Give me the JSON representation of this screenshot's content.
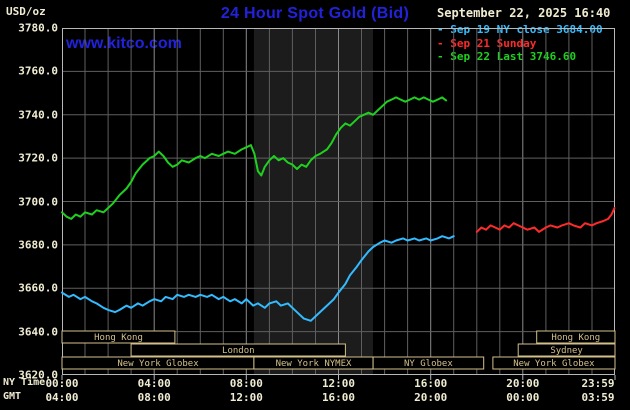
{
  "header": {
    "unit_label": "USD/oz",
    "title": "24 Hour Spot Gold (Bid)",
    "timestamp": "September 22, 2025 16:40",
    "watermark": "www.kitco.com"
  },
  "legend": {
    "entries": [
      {
        "bullet": "-",
        "label": "Sep 19 NY close 3684.00",
        "color": "#33bbff"
      },
      {
        "bullet": "-",
        "label": "Sep 21 Sunday",
        "color": "#ff2a2a"
      },
      {
        "bullet": "-",
        "label": "Sep 22 Last 3746.60",
        "color": "#1fd11f"
      }
    ]
  },
  "colors": {
    "background": "#000000",
    "title_blue": "#2222dd",
    "cream_text": "#f0ecd2",
    "grid_minor": "#5f5f5f",
    "grid_major": "#8a8a8a",
    "plot_border": "#b8b8b8",
    "session_tan": "#d2c08a",
    "nymex_band": "#1c1c1c",
    "cyan": "#33bbff",
    "red": "#ff2a2a",
    "green": "#1fd11f"
  },
  "chart_data": {
    "type": "line",
    "title": "24 Hour Spot Gold (Bid)",
    "ylabel": "USD/oz",
    "ylim": [
      3620,
      3780
    ],
    "y_step": 20,
    "y_tick_labels": [
      "3780.0",
      "3760.0",
      "3740.0",
      "3720.0",
      "3700.0",
      "3680.0",
      "3660.0",
      "3640.0",
      "3620.0"
    ],
    "xlim_hours": [
      0,
      24
    ],
    "x_tick_hours": [
      0,
      4,
      8,
      12,
      16,
      20,
      24
    ],
    "x_rows": [
      {
        "name": "NY Time",
        "labels": [
          "00:00",
          "04:00",
          "08:00",
          "12:00",
          "16:00",
          "20:00",
          "23:59"
        ]
      },
      {
        "name": "GMT",
        "labels": [
          "04:00",
          "08:00",
          "12:00",
          "16:00",
          "20:00",
          "00:00",
          "03:59"
        ]
      }
    ],
    "grid": true,
    "legend_position": "top-right",
    "nymex_highlight_hours": [
      8.33,
      13.5
    ],
    "series": [
      {
        "name": "Sep 19 NY close",
        "close_value": 3684.0,
        "color": "#33bbff",
        "points": [
          [
            0,
            3658
          ],
          [
            0.3,
            3656
          ],
          [
            0.5,
            3657
          ],
          [
            0.8,
            3655
          ],
          [
            1,
            3656
          ],
          [
            1.3,
            3654
          ],
          [
            1.5,
            3653
          ],
          [
            1.8,
            3651
          ],
          [
            2,
            3650
          ],
          [
            2.3,
            3649
          ],
          [
            2.5,
            3650
          ],
          [
            2.8,
            3652
          ],
          [
            3,
            3651
          ],
          [
            3.3,
            3653
          ],
          [
            3.5,
            3652
          ],
          [
            3.8,
            3654
          ],
          [
            4,
            3655
          ],
          [
            4.3,
            3654
          ],
          [
            4.5,
            3656
          ],
          [
            4.8,
            3655
          ],
          [
            5,
            3657
          ],
          [
            5.3,
            3656
          ],
          [
            5.5,
            3657
          ],
          [
            5.8,
            3656
          ],
          [
            6,
            3657
          ],
          [
            6.3,
            3656
          ],
          [
            6.5,
            3657
          ],
          [
            6.8,
            3655
          ],
          [
            7,
            3656
          ],
          [
            7.3,
            3654
          ],
          [
            7.5,
            3655
          ],
          [
            7.8,
            3653
          ],
          [
            8,
            3655
          ],
          [
            8.3,
            3652
          ],
          [
            8.5,
            3653
          ],
          [
            8.8,
            3651
          ],
          [
            9,
            3653
          ],
          [
            9.3,
            3654
          ],
          [
            9.5,
            3652
          ],
          [
            9.8,
            3653
          ],
          [
            10,
            3651
          ],
          [
            10.3,
            3648
          ],
          [
            10.5,
            3646
          ],
          [
            10.8,
            3645
          ],
          [
            11,
            3647
          ],
          [
            11.3,
            3650
          ],
          [
            11.5,
            3652
          ],
          [
            11.8,
            3655
          ],
          [
            12,
            3658
          ],
          [
            12.3,
            3662
          ],
          [
            12.5,
            3666
          ],
          [
            12.8,
            3670
          ],
          [
            13,
            3673
          ],
          [
            13.3,
            3677
          ],
          [
            13.5,
            3679
          ],
          [
            13.8,
            3681
          ],
          [
            14,
            3682
          ],
          [
            14.3,
            3681
          ],
          [
            14.5,
            3682
          ],
          [
            14.8,
            3683
          ],
          [
            15,
            3682
          ],
          [
            15.3,
            3683
          ],
          [
            15.5,
            3682
          ],
          [
            15.8,
            3683
          ],
          [
            16,
            3682
          ],
          [
            16.3,
            3683
          ],
          [
            16.5,
            3684
          ],
          [
            16.8,
            3683
          ],
          [
            17,
            3684
          ]
        ]
      },
      {
        "name": "Sep 21 Sunday",
        "color": "#ff2a2a",
        "points": [
          [
            18,
            3686
          ],
          [
            18.2,
            3688
          ],
          [
            18.4,
            3687
          ],
          [
            18.6,
            3689
          ],
          [
            18.8,
            3688
          ],
          [
            19,
            3687
          ],
          [
            19.2,
            3689
          ],
          [
            19.4,
            3688
          ],
          [
            19.6,
            3690
          ],
          [
            19.8,
            3689
          ],
          [
            20,
            3688
          ],
          [
            20.2,
            3687
          ],
          [
            20.5,
            3688
          ],
          [
            20.7,
            3686
          ],
          [
            21,
            3688
          ],
          [
            21.2,
            3689
          ],
          [
            21.5,
            3688
          ],
          [
            21.7,
            3689
          ],
          [
            22,
            3690
          ],
          [
            22.2,
            3689
          ],
          [
            22.5,
            3688
          ],
          [
            22.7,
            3690
          ],
          [
            23,
            3689
          ],
          [
            23.2,
            3690
          ],
          [
            23.5,
            3691
          ],
          [
            23.7,
            3692
          ],
          [
            23.85,
            3694
          ],
          [
            23.98,
            3697
          ]
        ]
      },
      {
        "name": "Sep 22 Last",
        "last_value": 3746.6,
        "color": "#1fd11f",
        "points": [
          [
            0,
            3695
          ],
          [
            0.2,
            3693
          ],
          [
            0.4,
            3692
          ],
          [
            0.6,
            3694
          ],
          [
            0.8,
            3693
          ],
          [
            1,
            3695
          ],
          [
            1.3,
            3694
          ],
          [
            1.5,
            3696
          ],
          [
            1.8,
            3695
          ],
          [
            2,
            3697
          ],
          [
            2.2,
            3699
          ],
          [
            2.5,
            3703
          ],
          [
            2.8,
            3706
          ],
          [
            3,
            3709
          ],
          [
            3.2,
            3713
          ],
          [
            3.5,
            3717
          ],
          [
            3.8,
            3720
          ],
          [
            4,
            3721
          ],
          [
            4.2,
            3723
          ],
          [
            4.4,
            3721
          ],
          [
            4.6,
            3718
          ],
          [
            4.8,
            3716
          ],
          [
            5,
            3717
          ],
          [
            5.2,
            3719
          ],
          [
            5.5,
            3718
          ],
          [
            5.8,
            3720
          ],
          [
            6,
            3721
          ],
          [
            6.2,
            3720
          ],
          [
            6.5,
            3722
          ],
          [
            6.8,
            3721
          ],
          [
            7,
            3722
          ],
          [
            7.2,
            3723
          ],
          [
            7.5,
            3722
          ],
          [
            7.8,
            3724
          ],
          [
            8,
            3725
          ],
          [
            8.2,
            3726
          ],
          [
            8.35,
            3722
          ],
          [
            8.5,
            3714
          ],
          [
            8.65,
            3712
          ],
          [
            8.8,
            3716
          ],
          [
            9,
            3719
          ],
          [
            9.2,
            3721
          ],
          [
            9.4,
            3719
          ],
          [
            9.6,
            3720
          ],
          [
            9.8,
            3718
          ],
          [
            10,
            3717
          ],
          [
            10.2,
            3715
          ],
          [
            10.4,
            3717
          ],
          [
            10.6,
            3716
          ],
          [
            10.8,
            3719
          ],
          [
            11,
            3721
          ],
          [
            11.2,
            3722
          ],
          [
            11.5,
            3724
          ],
          [
            11.7,
            3727
          ],
          [
            11.9,
            3731
          ],
          [
            12.1,
            3734
          ],
          [
            12.3,
            3736
          ],
          [
            12.5,
            3735
          ],
          [
            12.7,
            3737
          ],
          [
            12.9,
            3739
          ],
          [
            13.1,
            3740
          ],
          [
            13.3,
            3741
          ],
          [
            13.5,
            3740
          ],
          [
            13.7,
            3742
          ],
          [
            13.9,
            3744
          ],
          [
            14.1,
            3746
          ],
          [
            14.3,
            3747
          ],
          [
            14.5,
            3748
          ],
          [
            14.7,
            3747
          ],
          [
            14.9,
            3746
          ],
          [
            15.1,
            3747
          ],
          [
            15.3,
            3748
          ],
          [
            15.5,
            3747
          ],
          [
            15.7,
            3748
          ],
          [
            15.9,
            3747
          ],
          [
            16.1,
            3746
          ],
          [
            16.3,
            3747
          ],
          [
            16.5,
            3748
          ],
          [
            16.67,
            3746.6
          ]
        ]
      }
    ],
    "sessions": [
      {
        "row": 0,
        "label": "Hong Kong",
        "start": 0,
        "end": 4.9
      },
      {
        "row": 0,
        "label": "Hong Kong",
        "start": 20.6,
        "end": 24
      },
      {
        "row": 1,
        "label": "London",
        "start": 3.0,
        "end": 12.3
      },
      {
        "row": 1,
        "label": "Sydney",
        "start": 19.8,
        "end": 24
      },
      {
        "row": 2,
        "label": "New York Globex",
        "start": 0,
        "end": 8.33
      },
      {
        "row": 2,
        "label": "New York NYMEX",
        "start": 8.33,
        "end": 13.5
      },
      {
        "row": 2,
        "label": "NY Globex",
        "start": 13.5,
        "end": 18.3
      },
      {
        "row": 2,
        "label": "New York Globex",
        "start": 18.7,
        "end": 24
      }
    ]
  }
}
